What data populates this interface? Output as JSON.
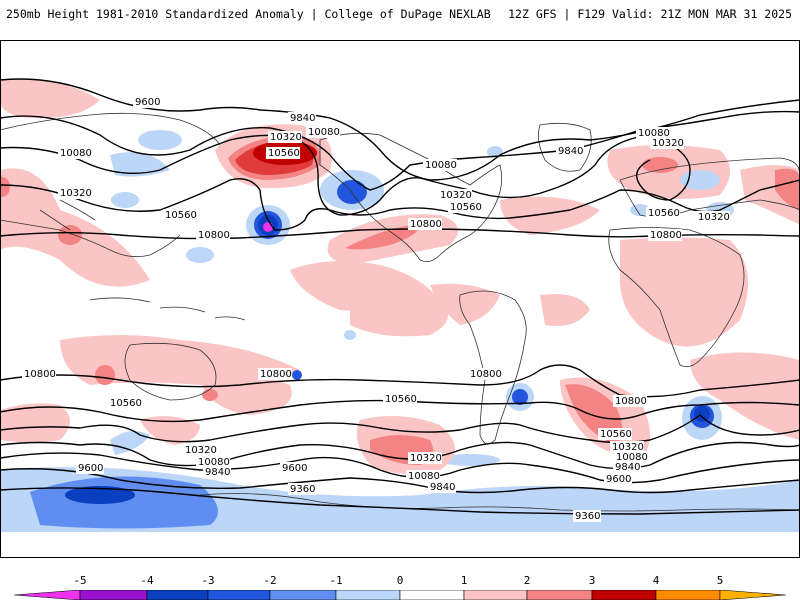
{
  "header": {
    "left_title": "250mb Height 1981-2010 Standardized Anomaly | College of DuPage NEXLAB",
    "right_title": "12Z GFS | F129 Valid: 21Z MON MAR 31 2025"
  },
  "contour_labels": [
    "9600",
    "9840",
    "10080",
    "10320",
    "10560",
    "10800",
    "9360"
  ],
  "colorbar": {
    "ticks": [
      "-5",
      "-4",
      "-3",
      "-2",
      "-1",
      "0",
      "1",
      "2",
      "3",
      "4",
      "5"
    ],
    "colors": [
      "#ee33ee",
      "#9911cc",
      "#0a3fbf",
      "#2255dd",
      "#5f8ef0",
      "#bcd6f8",
      "#ffffff",
      "#fbc5c5",
      "#f48383",
      "#e03a3a",
      "#c00000",
      "#ff8c00",
      "#ffb000"
    ]
  },
  "colors": {
    "positive_light": "#fbc5c5",
    "positive_mid": "#f48383",
    "positive_strong": "#e03a3a",
    "positive_max": "#c00000",
    "negative_light": "#bcd6f8",
    "negative_mid": "#5f8ef0",
    "negative_strong": "#2255dd",
    "negative_max": "#0a3fbf",
    "extreme_neg": "#ee33ee"
  }
}
